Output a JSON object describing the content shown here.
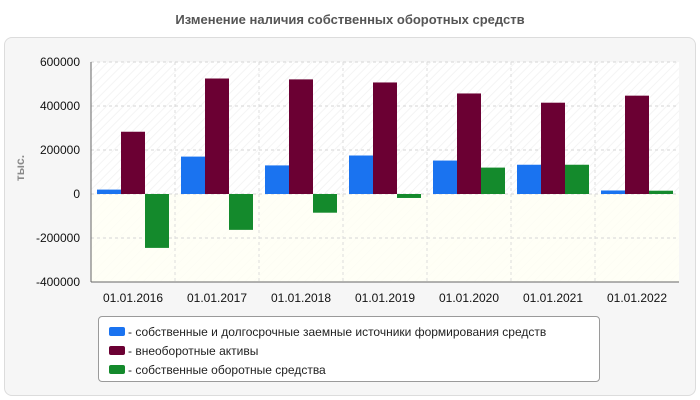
{
  "chart_data": {
    "type": "bar",
    "title": "Изменение наличия собственных оборотных средств",
    "ylabel": "тыс.",
    "xlabel": "",
    "categories": [
      "01.01.2016",
      "01.01.2017",
      "01.01.2018",
      "01.01.2019",
      "01.01.2020",
      "01.01.2021",
      "01.01.2022"
    ],
    "series": [
      {
        "name": "- собственные и долгосрочные заемные источники формирования средств",
        "color": "#1a73f0",
        "values": [
          20000,
          170000,
          130000,
          175000,
          152000,
          133000,
          16000
        ]
      },
      {
        "name": "- внеоборотные активы",
        "color": "#6b0033",
        "values": [
          283000,
          525000,
          521000,
          507000,
          457000,
          415000,
          447000
        ]
      },
      {
        "name": "- собственные оборотные средства",
        "color": "#148a2c",
        "values": [
          -245000,
          -163000,
          -85000,
          -18000,
          120000,
          133000,
          15000
        ]
      }
    ],
    "ylim": [
      -400000,
      600000
    ],
    "yticks": [
      600000,
      400000,
      200000,
      0,
      -200000,
      -400000
    ],
    "ytick_labels": [
      "600000",
      "400000",
      "200000",
      "0",
      "-200000",
      "-400000"
    ],
    "grid": true,
    "legend_position": "bottom"
  }
}
